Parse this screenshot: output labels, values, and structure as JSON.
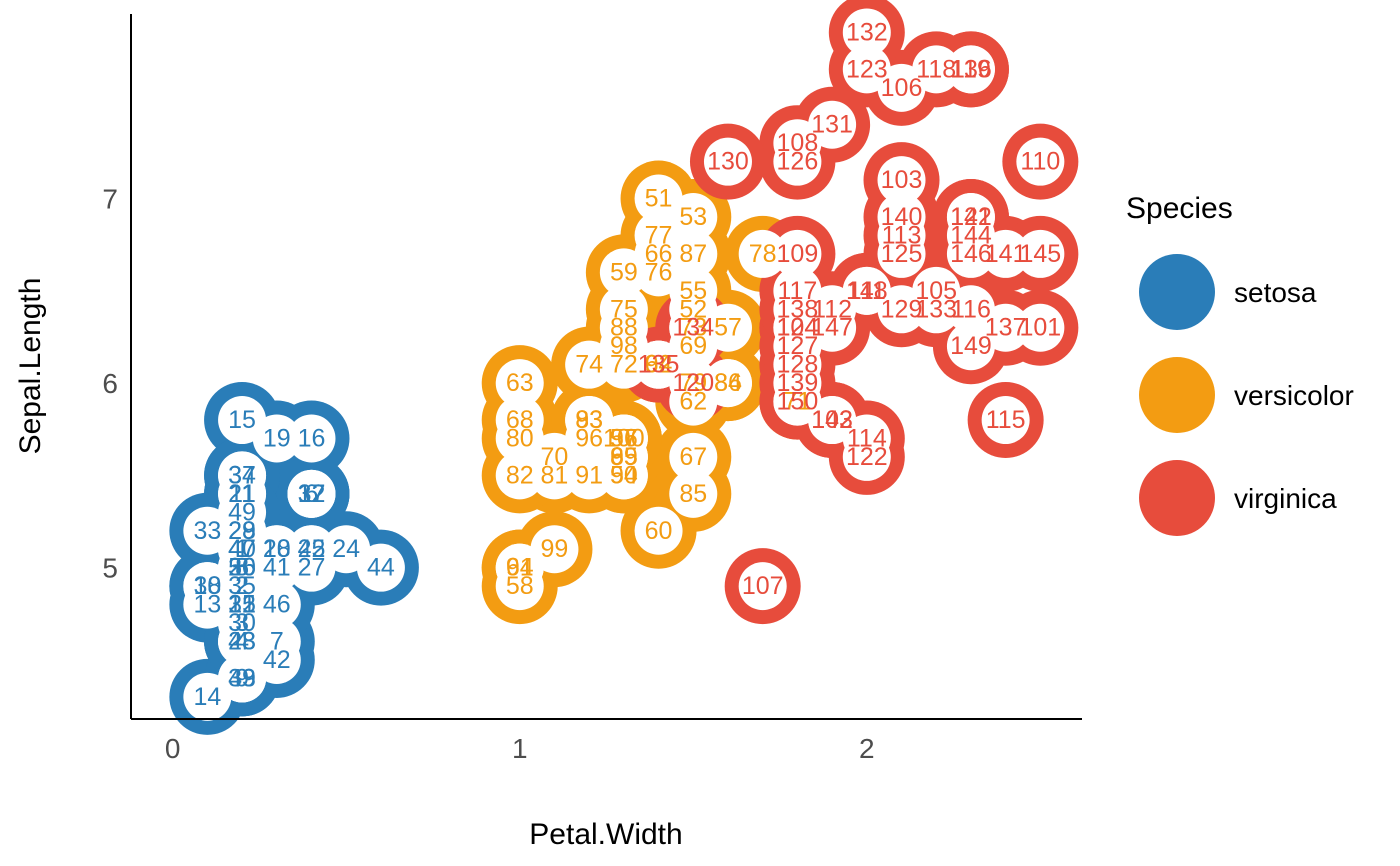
{
  "chart_data": {
    "type": "scatter",
    "xlabel": "Petal.Width",
    "ylabel": "Sepal.Length",
    "xlim": [
      -0.12,
      2.62
    ],
    "ylim": [
      4.18,
      8.0
    ],
    "x_ticks": [
      0,
      1,
      2
    ],
    "y_ticks": [
      5,
      6,
      7
    ],
    "grid": false,
    "legend": {
      "title": "Species",
      "position": "right"
    },
    "series": [
      {
        "name": "setosa",
        "color": "#2A7DB8",
        "points": [
          [
            0.2,
            5.1,
            1
          ],
          [
            0.2,
            4.9,
            2
          ],
          [
            0.2,
            4.7,
            3
          ],
          [
            0.2,
            4.6,
            4
          ],
          [
            0.2,
            5.0,
            5
          ],
          [
            0.4,
            5.4,
            6
          ],
          [
            0.3,
            4.6,
            7
          ],
          [
            0.2,
            5.0,
            8
          ],
          [
            0.2,
            4.4,
            9
          ],
          [
            0.1,
            4.9,
            10
          ],
          [
            0.2,
            5.4,
            11
          ],
          [
            0.2,
            4.8,
            12
          ],
          [
            0.1,
            4.8,
            13
          ],
          [
            0.1,
            4.3,
            14
          ],
          [
            0.2,
            5.8,
            15
          ],
          [
            0.4,
            5.7,
            16
          ],
          [
            0.4,
            5.4,
            17
          ],
          [
            0.3,
            5.1,
            18
          ],
          [
            0.3,
            5.7,
            19
          ],
          [
            0.3,
            5.1,
            20
          ],
          [
            0.2,
            5.4,
            21
          ],
          [
            0.4,
            5.1,
            22
          ],
          [
            0.2,
            4.6,
            23
          ],
          [
            0.5,
            5.1,
            24
          ],
          [
            0.2,
            4.8,
            25
          ],
          [
            0.2,
            5.0,
            26
          ],
          [
            0.4,
            5.0,
            27
          ],
          [
            0.2,
            5.2,
            28
          ],
          [
            0.2,
            5.2,
            29
          ],
          [
            0.2,
            4.7,
            30
          ],
          [
            0.2,
            4.8,
            31
          ],
          [
            0.4,
            5.4,
            32
          ],
          [
            0.1,
            5.2,
            33
          ],
          [
            0.2,
            5.5,
            34
          ],
          [
            0.2,
            4.9,
            35
          ],
          [
            0.2,
            5.0,
            36
          ],
          [
            0.2,
            5.5,
            37
          ],
          [
            0.1,
            4.9,
            38
          ],
          [
            0.2,
            4.4,
            39
          ],
          [
            0.2,
            5.1,
            40
          ],
          [
            0.3,
            5.0,
            41
          ],
          [
            0.3,
            4.5,
            42
          ],
          [
            0.2,
            4.4,
            43
          ],
          [
            0.6,
            5.0,
            44
          ],
          [
            0.4,
            5.1,
            45
          ],
          [
            0.3,
            4.8,
            46
          ],
          [
            0.2,
            5.1,
            47
          ],
          [
            0.2,
            4.6,
            48
          ],
          [
            0.2,
            5.3,
            49
          ],
          [
            0.2,
            5.0,
            50
          ]
        ]
      },
      {
        "name": "versicolor",
        "color": "#F39C12",
        "points": [
          [
            1.4,
            7.0,
            51
          ],
          [
            1.5,
            6.4,
            52
          ],
          [
            1.5,
            6.9,
            53
          ],
          [
            1.3,
            5.5,
            54
          ],
          [
            1.5,
            6.5,
            55
          ],
          [
            1.3,
            5.7,
            56
          ],
          [
            1.6,
            6.3,
            57
          ],
          [
            1.0,
            4.9,
            58
          ],
          [
            1.3,
            6.6,
            59
          ],
          [
            1.4,
            5.2,
            60
          ],
          [
            1.0,
            5.0,
            61
          ],
          [
            1.5,
            5.9,
            62
          ],
          [
            1.0,
            6.0,
            63
          ],
          [
            1.4,
            6.1,
            64
          ],
          [
            1.3,
            5.6,
            65
          ],
          [
            1.4,
            6.7,
            66
          ],
          [
            1.5,
            5.6,
            67
          ],
          [
            1.0,
            5.8,
            68
          ],
          [
            1.5,
            6.2,
            69
          ],
          [
            1.1,
            5.6,
            70
          ],
          [
            1.8,
            5.9,
            71
          ],
          [
            1.3,
            6.1,
            72
          ],
          [
            1.5,
            6.3,
            73
          ],
          [
            1.2,
            6.1,
            74
          ],
          [
            1.3,
            6.4,
            75
          ],
          [
            1.4,
            6.6,
            76
          ],
          [
            1.4,
            6.8,
            77
          ],
          [
            1.7,
            6.7,
            78
          ],
          [
            1.5,
            6.0,
            79
          ],
          [
            1.0,
            5.7,
            80
          ],
          [
            1.1,
            5.5,
            81
          ],
          [
            1.0,
            5.5,
            82
          ],
          [
            1.2,
            5.8,
            83
          ],
          [
            1.6,
            6.0,
            84
          ],
          [
            1.5,
            5.4,
            85
          ],
          [
            1.6,
            6.0,
            86
          ],
          [
            1.5,
            6.7,
            87
          ],
          [
            1.3,
            6.3,
            88
          ],
          [
            1.3,
            5.6,
            89
          ],
          [
            1.3,
            5.5,
            90
          ],
          [
            1.2,
            5.5,
            91
          ],
          [
            1.4,
            6.1,
            92
          ],
          [
            1.2,
            5.8,
            93
          ],
          [
            1.0,
            5.0,
            94
          ],
          [
            1.3,
            5.6,
            95
          ],
          [
            1.2,
            5.7,
            96
          ],
          [
            1.3,
            5.7,
            97
          ],
          [
            1.3,
            6.2,
            98
          ],
          [
            1.1,
            5.1,
            99
          ],
          [
            1.3,
            5.7,
            100
          ]
        ]
      },
      {
        "name": "virginica",
        "color": "#E74C3C",
        "points": [
          [
            2.5,
            6.3,
            101
          ],
          [
            1.9,
            5.8,
            102
          ],
          [
            2.1,
            7.1,
            103
          ],
          [
            1.8,
            6.3,
            104
          ],
          [
            2.2,
            6.5,
            105
          ],
          [
            2.1,
            7.6,
            106
          ],
          [
            1.7,
            4.9,
            107
          ],
          [
            1.8,
            7.3,
            108
          ],
          [
            1.8,
            6.7,
            109
          ],
          [
            2.5,
            7.2,
            110
          ],
          [
            2.0,
            6.5,
            111
          ],
          [
            1.9,
            6.4,
            112
          ],
          [
            2.1,
            6.8,
            113
          ],
          [
            2.0,
            5.7,
            114
          ],
          [
            2.4,
            5.8,
            115
          ],
          [
            2.3,
            6.4,
            116
          ],
          [
            1.8,
            6.5,
            117
          ],
          [
            2.2,
            7.7,
            118
          ],
          [
            2.3,
            7.7,
            119
          ],
          [
            1.5,
            6.0,
            120
          ],
          [
            2.3,
            6.9,
            121
          ],
          [
            2.0,
            5.6,
            122
          ],
          [
            2.0,
            7.7,
            123
          ],
          [
            1.8,
            6.3,
            124
          ],
          [
            2.1,
            6.7,
            125
          ],
          [
            1.8,
            7.2,
            126
          ],
          [
            1.8,
            6.2,
            127
          ],
          [
            1.8,
            6.1,
            128
          ],
          [
            2.1,
            6.4,
            129
          ],
          [
            1.6,
            7.2,
            130
          ],
          [
            1.9,
            7.4,
            131
          ],
          [
            2.0,
            7.9,
            132
          ],
          [
            2.2,
            6.4,
            133
          ],
          [
            1.5,
            6.3,
            134
          ],
          [
            1.4,
            6.1,
            135
          ],
          [
            2.3,
            7.7,
            136
          ],
          [
            2.4,
            6.3,
            137
          ],
          [
            1.8,
            6.4,
            138
          ],
          [
            1.8,
            6.0,
            139
          ],
          [
            2.1,
            6.9,
            140
          ],
          [
            2.4,
            6.7,
            141
          ],
          [
            2.3,
            6.9,
            142
          ],
          [
            1.9,
            5.8,
            143
          ],
          [
            2.3,
            6.8,
            144
          ],
          [
            2.5,
            6.7,
            145
          ],
          [
            2.3,
            6.7,
            146
          ],
          [
            1.9,
            6.3,
            147
          ],
          [
            2.0,
            6.5,
            148
          ],
          [
            2.3,
            6.2,
            149
          ],
          [
            1.8,
            5.9,
            150
          ]
        ]
      }
    ]
  }
}
